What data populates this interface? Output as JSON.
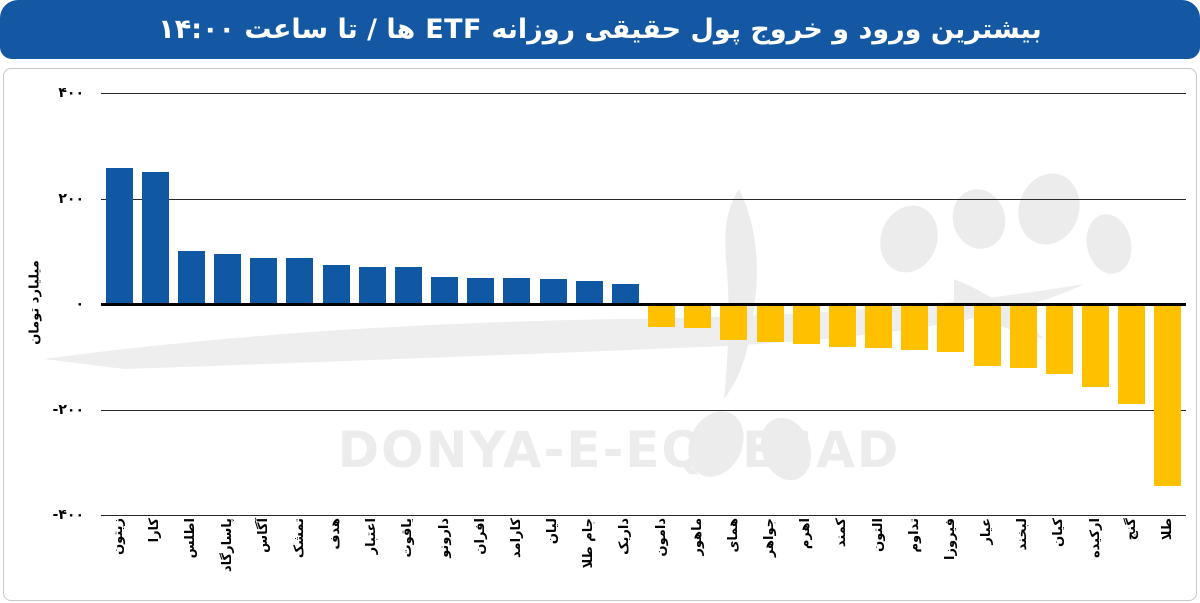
{
  "banner": {
    "title": "بیشترین ورود و خروج پول حقیقی روزانه ETF ها / تا ساعت ۱۴:۰۰"
  },
  "watermark": {
    "text": "DONYA-E-EQTESAD"
  },
  "colors": {
    "banner_blue": "#1458a4",
    "inflow_blue": "#1058a4",
    "outflow_yellow": "#ffc000",
    "gridline": "#2b2b2b",
    "watermark_gray": "#ececec"
  },
  "chart_data": {
    "type": "bar",
    "title": "بیشترین ورود و خروج پول حقیقی روزانه ETF ها / تا ساعت ۱۴:۰۰",
    "xlabel": "",
    "ylabel": "میلیارد تومان",
    "ylim": [
      -400,
      400
    ],
    "grid": true,
    "legend": false,
    "yticks": {
      "values": [
        400,
        200,
        0,
        -200,
        -400
      ],
      "labels": [
        "۴۰۰",
        "۲۰۰",
        "۰",
        "-۲۰۰",
        "-۴۰۰"
      ]
    },
    "categories": [
      "زیتون",
      "کارا",
      "اطلس",
      "پاسارگاد",
      "آگاس",
      "تمشک",
      "هدف",
      "اعتبار",
      "یاقوت",
      "دارونو",
      "افران",
      "کارامد",
      "لیان",
      "جام طلا",
      "داریک",
      "دامون",
      "ماهور",
      "همای",
      "جواهر",
      "اهرم",
      "کمند",
      "التون",
      "تداوم",
      "فیروزا",
      "عیار",
      "لبخند",
      "کیان",
      "ارکیده",
      "گنج",
      "طلا"
    ],
    "values": [
      258,
      250,
      100,
      95,
      88,
      87,
      73,
      71,
      70,
      52,
      50,
      49,
      47,
      43,
      38,
      -44,
      -46,
      -69,
      -72,
      -75,
      -82,
      -84,
      -87,
      -91,
      -118,
      -122,
      -133,
      -158,
      -190,
      -345
    ],
    "series_semantics": {
      "positive": "ورود پول حقیقی (آبی)",
      "negative": "خروج پول حقیقی (زرد)"
    }
  }
}
